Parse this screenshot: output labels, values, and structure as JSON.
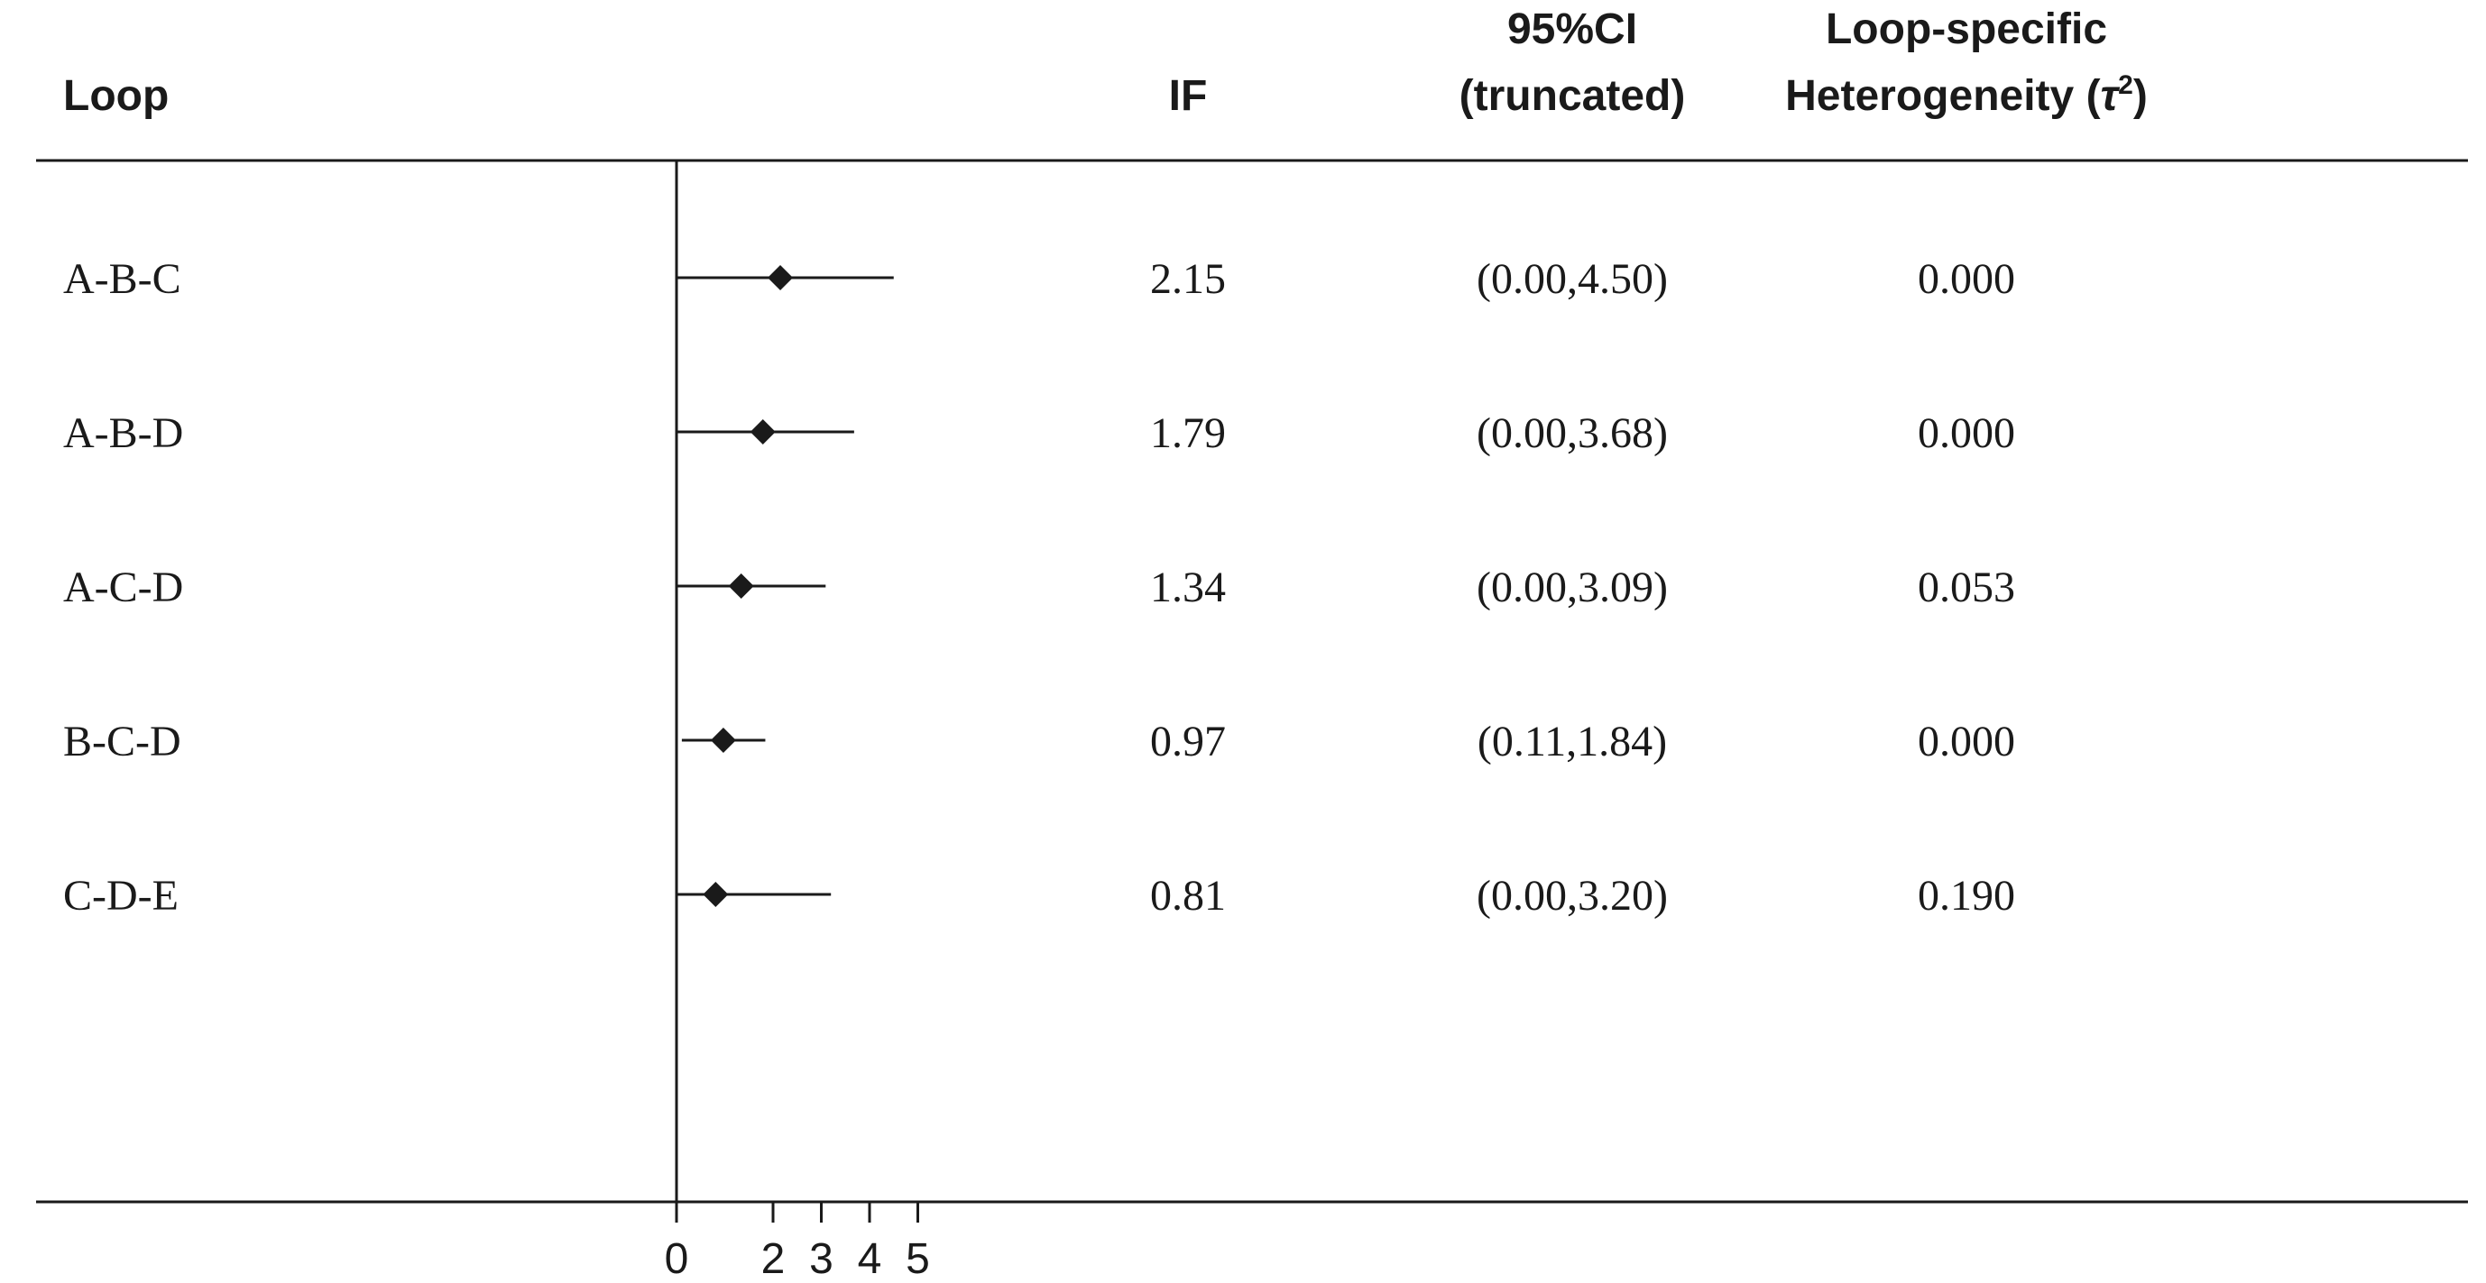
{
  "chart_data": {
    "type": "forest",
    "columns": {
      "loop": "Loop",
      "if": "IF",
      "ci_line1": "95%CI",
      "ci_line2": "(truncated)",
      "tau_line1": "Loop-specific",
      "tau_line2_prefix": "Heterogeneity (",
      "tau_symbol": "τ",
      "tau_exponent": "2",
      "tau_line2_suffix": ")"
    },
    "rows": [
      {
        "loop": "A-B-C",
        "if": 2.15,
        "ci_lower": 0.0,
        "ci_upper": 4.5,
        "if_text": "2.15",
        "ci_text": "(0.00,4.50)",
        "tau_text": "0.000"
      },
      {
        "loop": "A-B-D",
        "if": 1.79,
        "ci_lower": 0.0,
        "ci_upper": 3.68,
        "if_text": "1.79",
        "ci_text": "(0.00,3.68)",
        "tau_text": "0.000"
      },
      {
        "loop": "A-C-D",
        "if": 1.34,
        "ci_lower": 0.0,
        "ci_upper": 3.09,
        "if_text": "1.34",
        "ci_text": "(0.00,3.09)",
        "tau_text": "0.053"
      },
      {
        "loop": "B-C-D",
        "if": 0.97,
        "ci_lower": 0.11,
        "ci_upper": 1.84,
        "if_text": "0.97",
        "ci_text": "(0.11,1.84)",
        "tau_text": "0.000"
      },
      {
        "loop": "C-D-E",
        "if": 0.81,
        "ci_lower": 0.0,
        "ci_upper": 3.2,
        "if_text": "0.81",
        "ci_text": "(0.00,3.20)",
        "tau_text": "0.190"
      }
    ],
    "x_ticks": [
      0,
      2,
      3,
      4,
      5
    ],
    "x_tick_labels": [
      "0",
      "2",
      "3",
      "4",
      "5"
    ],
    "xlim": [
      0,
      5
    ],
    "reference_line": 0,
    "grid": false,
    "legend": "none"
  }
}
